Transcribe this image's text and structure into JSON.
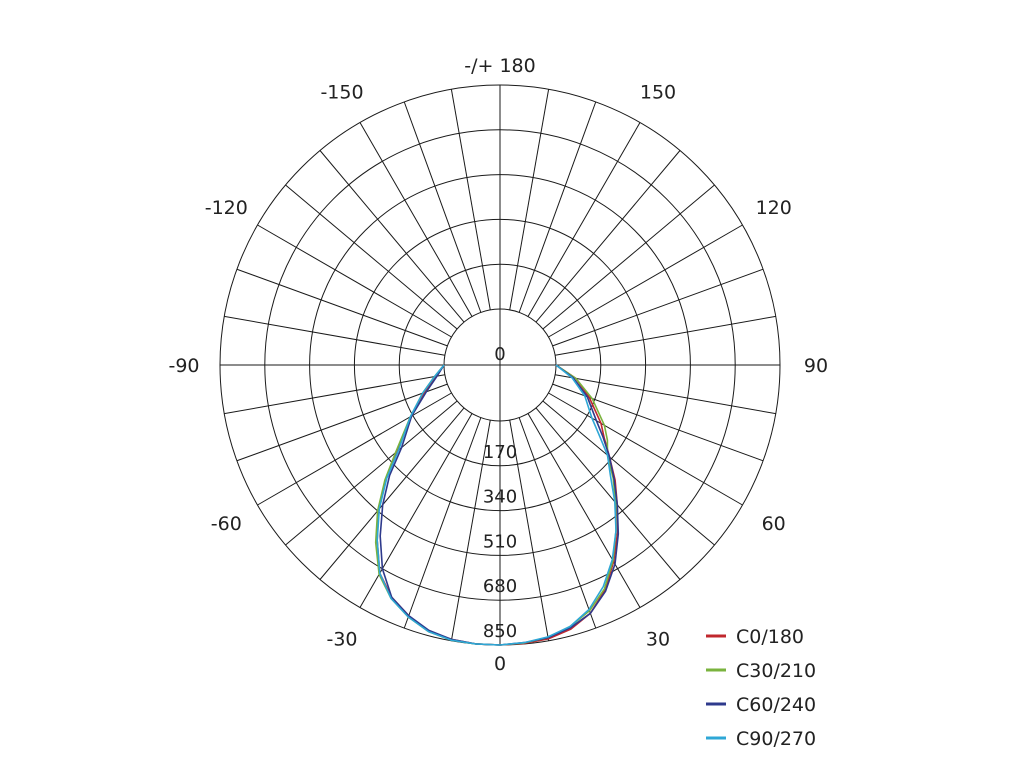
{
  "chart_data": {
    "type": "polar-line",
    "title": "",
    "angle_labels": [
      {
        "angle": 180,
        "text": "-/+ 180"
      },
      {
        "angle": 150,
        "text": "150"
      },
      {
        "angle": -150,
        "text": "-150"
      },
      {
        "angle": 120,
        "text": "120"
      },
      {
        "angle": -120,
        "text": "-120"
      },
      {
        "angle": 90,
        "text": "90"
      },
      {
        "angle": -90,
        "text": "-90"
      },
      {
        "angle": 60,
        "text": "60"
      },
      {
        "angle": -60,
        "text": "-60"
      },
      {
        "angle": 30,
        "text": "30"
      },
      {
        "angle": -30,
        "text": "-30"
      },
      {
        "angle": 0,
        "text": "0"
      }
    ],
    "radial_ticks": [
      0,
      170,
      340,
      510,
      680,
      850
    ],
    "radial_tick_labels": [
      "0",
      "170",
      "340",
      "510",
      "680",
      "850"
    ],
    "rmax": 850,
    "angle_step": 10,
    "legend_position": "bottom-right",
    "series": [
      {
        "name": "C0/180",
        "color": "#c0272d",
        "points": [
          [
            -90,
            0
          ],
          [
            -80,
            35
          ],
          [
            -70,
            95
          ],
          [
            -60,
            175
          ],
          [
            -50,
            300
          ],
          [
            -45,
            400
          ],
          [
            -40,
            505
          ],
          [
            -35,
            600
          ],
          [
            -30,
            700
          ],
          [
            -25,
            760
          ],
          [
            -20,
            800
          ],
          [
            -15,
            835
          ],
          [
            -10,
            845
          ],
          [
            -5,
            850
          ],
          [
            0,
            850
          ],
          [
            5,
            848
          ],
          [
            10,
            843
          ],
          [
            15,
            825
          ],
          [
            20,
            790
          ],
          [
            25,
            730
          ],
          [
            30,
            650
          ],
          [
            35,
            565
          ],
          [
            40,
            480
          ],
          [
            45,
            405
          ],
          [
            50,
            330
          ],
          [
            55,
            270
          ],
          [
            60,
            230
          ],
          [
            70,
            148
          ],
          [
            80,
            80
          ],
          [
            90,
            0
          ]
        ]
      },
      {
        "name": "C30/210",
        "color": "#7ab33e",
        "points": [
          [
            -90,
            0
          ],
          [
            -80,
            40
          ],
          [
            -70,
            100
          ],
          [
            -60,
            180
          ],
          [
            -50,
            305
          ],
          [
            -45,
            405
          ],
          [
            -40,
            510
          ],
          [
            -35,
            610
          ],
          [
            -30,
            705
          ],
          [
            -25,
            765
          ],
          [
            -20,
            805
          ],
          [
            -15,
            835
          ],
          [
            -10,
            848
          ],
          [
            -5,
            850
          ],
          [
            0,
            850
          ],
          [
            5,
            846
          ],
          [
            10,
            838
          ],
          [
            15,
            815
          ],
          [
            20,
            780
          ],
          [
            25,
            725
          ],
          [
            30,
            645
          ],
          [
            35,
            555
          ],
          [
            40,
            470
          ],
          [
            45,
            395
          ],
          [
            50,
            320
          ],
          [
            55,
            285
          ],
          [
            60,
            245
          ],
          [
            70,
            160
          ],
          [
            80,
            80
          ],
          [
            90,
            0
          ]
        ]
      },
      {
        "name": "C60/240",
        "color": "#2e3a8c",
        "points": [
          [
            -90,
            0
          ],
          [
            -80,
            30
          ],
          [
            -70,
            85
          ],
          [
            -60,
            175
          ],
          [
            -50,
            275
          ],
          [
            -45,
            380
          ],
          [
            -40,
            480
          ],
          [
            -35,
            580
          ],
          [
            -30,
            680
          ],
          [
            -25,
            760
          ],
          [
            -20,
            800
          ],
          [
            -15,
            830
          ],
          [
            -10,
            845
          ],
          [
            -5,
            850
          ],
          [
            0,
            850
          ],
          [
            5,
            845
          ],
          [
            10,
            838
          ],
          [
            15,
            820
          ],
          [
            20,
            790
          ],
          [
            25,
            735
          ],
          [
            30,
            660
          ],
          [
            35,
            570
          ],
          [
            40,
            480
          ],
          [
            45,
            400
          ],
          [
            50,
            330
          ],
          [
            55,
            265
          ],
          [
            60,
            210
          ],
          [
            70,
            140
          ],
          [
            80,
            70
          ],
          [
            90,
            0
          ]
        ]
      },
      {
        "name": "C90/270",
        "color": "#2ea7d6",
        "points": [
          [
            -90,
            0
          ],
          [
            -80,
            40
          ],
          [
            -70,
            100
          ],
          [
            -60,
            180
          ],
          [
            -50,
            290
          ],
          [
            -45,
            395
          ],
          [
            -40,
            500
          ],
          [
            -35,
            600
          ],
          [
            -30,
            700
          ],
          [
            -25,
            765
          ],
          [
            -20,
            805
          ],
          [
            -15,
            835
          ],
          [
            -10,
            848
          ],
          [
            -5,
            850
          ],
          [
            0,
            850
          ],
          [
            5,
            845
          ],
          [
            10,
            835
          ],
          [
            15,
            815
          ],
          [
            20,
            775
          ],
          [
            25,
            715
          ],
          [
            30,
            640
          ],
          [
            35,
            555
          ],
          [
            40,
            465
          ],
          [
            45,
            380
          ],
          [
            50,
            320
          ],
          [
            55,
            245
          ],
          [
            60,
            190
          ],
          [
            70,
            130
          ],
          [
            80,
            65
          ],
          [
            90,
            0
          ]
        ]
      }
    ]
  }
}
